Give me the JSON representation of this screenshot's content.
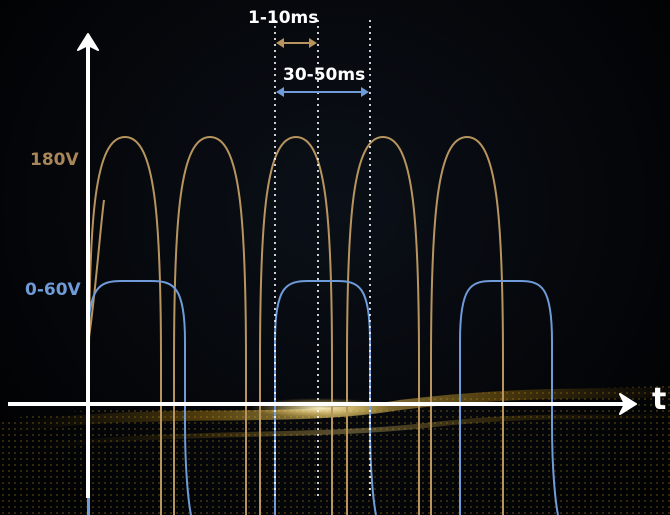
{
  "axis": {
    "t_label": "t"
  },
  "labels": {
    "high_voltage": "180V",
    "low_voltage": "0-60V",
    "short_interval": "1-10ms",
    "long_interval": "30-50ms"
  },
  "colors": {
    "high_wave": "#b8955f",
    "low_wave": "#6f9bd8",
    "axis": "#ffffff",
    "short_interval_arrow": "#b8955f",
    "long_interval_arrow": "#6f9bd8",
    "high_label": "#a8865a",
    "low_label": "#6f9bd8",
    "interval_text": "#ffffff",
    "glow": "#d9a520"
  },
  "waveforms": {
    "high_pulse_count": 5,
    "low_pulse_count": 3
  }
}
